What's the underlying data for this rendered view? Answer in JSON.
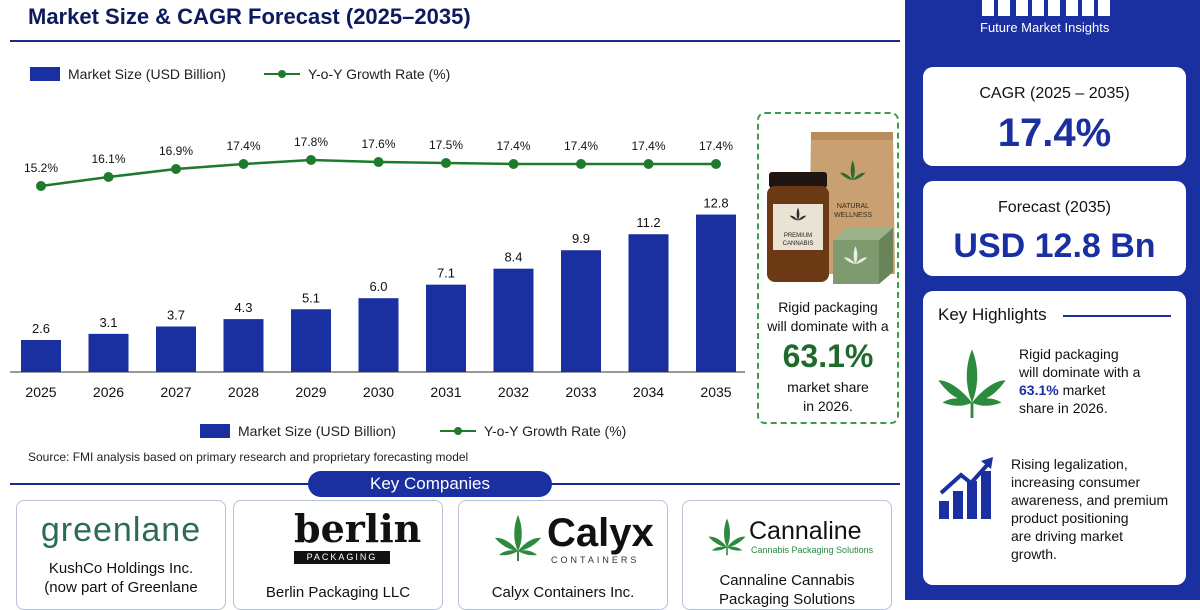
{
  "title": "Market Size & CAGR Forecast (2025–2035)",
  "legend_top": {
    "bar_label": "Market Size (USD Billion)",
    "line_label": "Y-o-Y Growth Rate (%)"
  },
  "legend_bottom": {
    "bar_label": "Market Size (USD Billion)",
    "line_label": "Y-o-Y Growth Rate (%)"
  },
  "source": "Source: FMI analysis based on primary research and proprietary forecasting model",
  "colors": {
    "bar": "#1a2fa0",
    "line": "#1e7a2c",
    "brand": "#1a2fa0"
  },
  "chart_data": {
    "type": "bar",
    "categories": [
      "2025",
      "2026",
      "2027",
      "2028",
      "2029",
      "2030",
      "2031",
      "2032",
      "2033",
      "2034",
      "2035"
    ],
    "series": [
      {
        "name": "Market Size (USD Billion)",
        "type": "bar",
        "values": [
          2.6,
          3.1,
          3.7,
          4.3,
          5.1,
          6.0,
          7.1,
          8.4,
          9.9,
          11.2,
          12.8
        ],
        "labels": [
          "2.6",
          "3.1",
          "3.7",
          "4.3",
          "5.1",
          "6.0",
          "7.1",
          "8.4",
          "9.9",
          "11.2",
          "12.8"
        ]
      },
      {
        "name": "Y-o-Y Growth Rate (%)",
        "type": "line",
        "values": [
          15.2,
          16.1,
          16.9,
          17.4,
          17.8,
          17.6,
          17.5,
          17.4,
          17.4,
          17.4,
          17.4
        ],
        "labels": [
          "15.2%",
          "16.1%",
          "16.9%",
          "17.4%",
          "17.8%",
          "17.6%",
          "17.5%",
          "17.4%",
          "17.4%",
          "17.4%",
          "17.4%"
        ]
      }
    ],
    "grid": false,
    "legend": "top-left"
  },
  "key_companies": {
    "heading": "Key Companies",
    "companies": [
      {
        "logo": "greenlane",
        "name_lines": [
          "KushCo Holdings Inc.",
          "(now part of Greenlane"
        ]
      },
      {
        "logo": "berlin",
        "logo_sub": "PACKAGING",
        "name_lines": [
          "Berlin Packaging LLC"
        ]
      },
      {
        "logo": "Calyx",
        "logo_sub": "CONTAINERS",
        "name_lines": [
          "Calyx Containers Inc."
        ]
      },
      {
        "logo": "Cannaline",
        "logo_sub": "Cannabis Packaging Solutions",
        "name_lines": [
          "Cannaline Cannabis",
          "Packaging Solutions"
        ]
      }
    ]
  },
  "product_panel": {
    "pouch_label_1": "NATURAL",
    "pouch_label_2": "WELLNESS",
    "jar_label_1": "PREMIUM",
    "jar_label_2": "CANNABIS",
    "text_lines": [
      "Rigid packaging",
      "will dominate with a"
    ],
    "big": "63.1%",
    "tail_lines": [
      "market share",
      "in 2026."
    ]
  },
  "right": {
    "brand": "Future Market Insights",
    "cagr_label": "CAGR (2025 – 2035)",
    "cagr_value": "17.4%",
    "forecast_label": "Forecast (2035)",
    "forecast_value": "USD 12.8 Bn",
    "highlights_title": "Key Highlights",
    "hl1_lines": [
      "Rigid packaging",
      "will dominate with a"
    ],
    "hl1_bold": "63.1%",
    "hl1_after": " market",
    "hl1_tail": "share in 2026.",
    "hl2_lines": [
      "Rising legalization,",
      "increasing consumer",
      "awareness, and premium",
      "product positioning",
      "are driving market",
      "growth."
    ]
  }
}
